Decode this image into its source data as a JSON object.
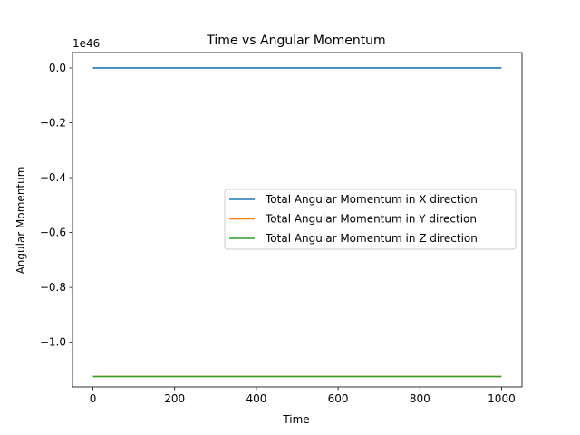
{
  "chart_data": {
    "type": "line",
    "title": "Time vs Angular Momentum",
    "xlabel": "Time",
    "ylabel": "Angular Momentum",
    "y_offset_text": "1e46",
    "xlim": [
      -50,
      1050
    ],
    "ylim": [
      -1.163,
      0.056
    ],
    "xticks": [
      0,
      200,
      400,
      600,
      800,
      1000
    ],
    "xtick_labels": [
      "0",
      "200",
      "400",
      "600",
      "800",
      "1000"
    ],
    "yticks": [
      0.0,
      -0.2,
      -0.4,
      -0.6,
      -0.8,
      -1.0
    ],
    "ytick_labels": [
      "0.0",
      "−0.2",
      "−0.4",
      "−0.6",
      "−0.8",
      "−1.0"
    ],
    "grid": false,
    "legend_position": "center-right",
    "x": [
      0,
      1000
    ],
    "series": [
      {
        "name": "Total Angular Momentum in X direction",
        "color": "#1f77b4",
        "values": [
          0.0,
          0.0
        ]
      },
      {
        "name": "Total Angular Momentum in Y direction",
        "color": "#ff7f0e",
        "values": [
          -1.125,
          -1.125
        ]
      },
      {
        "name": "Total Angular Momentum in Z direction",
        "color": "#2ca02c",
        "values": [
          -1.125,
          -1.125
        ]
      }
    ]
  }
}
